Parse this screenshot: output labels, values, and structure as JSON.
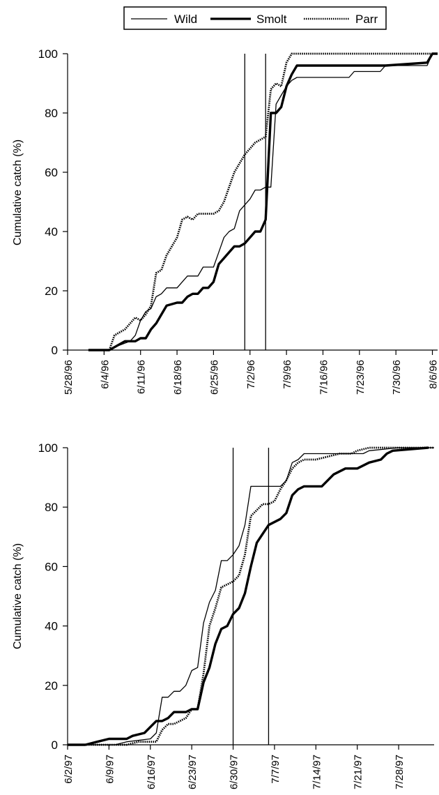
{
  "legend": {
    "placement": "top-center",
    "entries": [
      {
        "label": "Wild",
        "style": "thin"
      },
      {
        "label": "Smolt",
        "style": "thick"
      },
      {
        "label": "Parr",
        "style": "dotted"
      }
    ]
  },
  "chart_data": [
    {
      "type": "line",
      "title": "",
      "xlabel": "",
      "ylabel": "Cumulative catch (%)",
      "ylim": [
        0,
        100
      ],
      "yticks": [
        0,
        20,
        40,
        60,
        80,
        100
      ],
      "xlim": [
        "5/28/96",
        "8/7/96"
      ],
      "xticks": [
        "5/28/96",
        "6/4/96",
        "6/11/96",
        "6/18/96",
        "6/25/96",
        "7/2/96",
        "7/9/96",
        "7/16/96",
        "7/23/96",
        "7/30/96",
        "8/6/96"
      ],
      "grid": false,
      "vlines": [
        "7/1/96",
        "7/5/96"
      ],
      "series": [
        {
          "name": "Wild",
          "style": "thin",
          "points": [
            [
              "6/1/96",
              0
            ],
            [
              "6/5/96",
              0
            ],
            [
              "6/6/96",
              1
            ],
            [
              "6/9/96",
              3
            ],
            [
              "6/10/96",
              5
            ],
            [
              "6/11/96",
              10
            ],
            [
              "6/12/96",
              13
            ],
            [
              "6/13/96",
              14
            ],
            [
              "6/14/96",
              18
            ],
            [
              "6/15/96",
              19
            ],
            [
              "6/16/96",
              21
            ],
            [
              "6/18/96",
              21
            ],
            [
              "6/19/96",
              23
            ],
            [
              "6/20/96",
              25
            ],
            [
              "6/22/96",
              25
            ],
            [
              "6/23/96",
              28
            ],
            [
              "6/25/96",
              28
            ],
            [
              "6/26/96",
              33
            ],
            [
              "6/27/96",
              38
            ],
            [
              "6/28/96",
              40
            ],
            [
              "6/29/96",
              41
            ],
            [
              "6/30/96",
              47
            ],
            [
              "7/1/96",
              49
            ],
            [
              "7/2/96",
              51
            ],
            [
              "7/3/96",
              54
            ],
            [
              "7/4/96",
              54
            ],
            [
              "7/5/96",
              55
            ],
            [
              "7/6/96",
              55
            ],
            [
              "7/7/96",
              83
            ],
            [
              "7/8/96",
              86
            ],
            [
              "7/9/96",
              89
            ],
            [
              "7/10/96",
              91
            ],
            [
              "7/11/96",
              92
            ],
            [
              "7/12/96",
              92
            ],
            [
              "7/13/96",
              92
            ],
            [
              "7/21/96",
              92
            ],
            [
              "7/22/96",
              94
            ],
            [
              "7/27/96",
              94
            ],
            [
              "7/28/96",
              96
            ],
            [
              "8/5/96",
              96
            ],
            [
              "8/6/96",
              100
            ],
            [
              "8/7/96",
              100
            ]
          ]
        },
        {
          "name": "Smolt",
          "style": "thick",
          "points": [
            [
              "6/1/96",
              0
            ],
            [
              "6/5/96",
              0
            ],
            [
              "6/6/96",
              1
            ],
            [
              "6/8/96",
              3
            ],
            [
              "6/10/96",
              3
            ],
            [
              "6/11/96",
              4
            ],
            [
              "6/12/96",
              4
            ],
            [
              "6/13/96",
              7
            ],
            [
              "6/14/96",
              9
            ],
            [
              "6/15/96",
              12
            ],
            [
              "6/16/96",
              15
            ],
            [
              "6/18/96",
              16
            ],
            [
              "6/19/96",
              16
            ],
            [
              "6/20/96",
              18
            ],
            [
              "6/21/96",
              19
            ],
            [
              "6/22/96",
              19
            ],
            [
              "6/23/96",
              21
            ],
            [
              "6/24/96",
              21
            ],
            [
              "6/25/96",
              23
            ],
            [
              "6/26/96",
              29
            ],
            [
              "6/27/96",
              31
            ],
            [
              "6/28/96",
              33
            ],
            [
              "6/29/96",
              35
            ],
            [
              "6/30/96",
              35
            ],
            [
              "7/1/96",
              36
            ],
            [
              "7/2/96",
              38
            ],
            [
              "7/3/96",
              40
            ],
            [
              "7/4/96",
              40
            ],
            [
              "7/5/96",
              44
            ],
            [
              "7/6/96",
              80
            ],
            [
              "7/7/96",
              80
            ],
            [
              "7/8/96",
              82
            ],
            [
              "7/9/96",
              89
            ],
            [
              "7/10/96",
              93
            ],
            [
              "7/11/96",
              96
            ],
            [
              "7/20/96",
              96
            ],
            [
              "7/28/96",
              96
            ],
            [
              "8/5/96",
              97
            ],
            [
              "8/6/96",
              100
            ],
            [
              "8/7/96",
              100
            ]
          ]
        },
        {
          "name": "Parr",
          "style": "dotted",
          "points": [
            [
              "6/1/96",
              0
            ],
            [
              "6/5/96",
              0
            ],
            [
              "6/6/96",
              5
            ],
            [
              "6/7/96",
              6
            ],
            [
              "6/8/96",
              7
            ],
            [
              "6/9/96",
              9
            ],
            [
              "6/10/96",
              11
            ],
            [
              "6/11/96",
              10
            ],
            [
              "6/12/96",
              12
            ],
            [
              "6/13/96",
              15
            ],
            [
              "6/14/96",
              26
            ],
            [
              "6/15/96",
              27
            ],
            [
              "6/16/96",
              32
            ],
            [
              "6/17/96",
              35
            ],
            [
              "6/18/96",
              38
            ],
            [
              "6/19/96",
              44
            ],
            [
              "6/20/96",
              45
            ],
            [
              "6/21/96",
              44
            ],
            [
              "6/22/96",
              46
            ],
            [
              "6/25/96",
              46
            ],
            [
              "6/26/96",
              47
            ],
            [
              "6/27/96",
              50
            ],
            [
              "6/28/96",
              55
            ],
            [
              "6/29/96",
              60
            ],
            [
              "6/30/96",
              63
            ],
            [
              "7/1/96",
              66
            ],
            [
              "7/2/96",
              68
            ],
            [
              "7/3/96",
              70
            ],
            [
              "7/4/96",
              71
            ],
            [
              "7/5/96",
              72
            ],
            [
              "7/6/96",
              88
            ],
            [
              "7/7/96",
              90
            ],
            [
              "7/8/96",
              89
            ],
            [
              "7/9/96",
              97
            ],
            [
              "7/10/96",
              100
            ],
            [
              "8/7/96",
              100
            ]
          ]
        }
      ]
    },
    {
      "type": "line",
      "title": "",
      "xlabel": "",
      "ylabel": "Cumulative catch (%)",
      "ylim": [
        0,
        100
      ],
      "yticks": [
        0,
        20,
        40,
        60,
        80,
        100
      ],
      "xlim": [
        "6/2/97",
        "8/3/97"
      ],
      "xticks": [
        "6/2/97",
        "6/9/97",
        "6/16/97",
        "6/23/97",
        "6/30/97",
        "7/7/97",
        "7/14/97",
        "7/21/97",
        "7/28/97"
      ],
      "grid": false,
      "vlines": [
        "6/30/97",
        "7/6/97"
      ],
      "series": [
        {
          "name": "Wild",
          "style": "thin",
          "points": [
            [
              "6/2/97",
              0
            ],
            [
              "6/10/97",
              0
            ],
            [
              "6/12/97",
              1
            ],
            [
              "6/16/97",
              2
            ],
            [
              "6/17/97",
              4
            ],
            [
              "6/18/97",
              16
            ],
            [
              "6/19/97",
              16
            ],
            [
              "6/20/97",
              18
            ],
            [
              "6/21/97",
              18
            ],
            [
              "6/22/97",
              20
            ],
            [
              "6/23/97",
              25
            ],
            [
              "6/24/97",
              26
            ],
            [
              "6/25/97",
              41
            ],
            [
              "6/26/97",
              48
            ],
            [
              "6/27/97",
              52
            ],
            [
              "6/28/97",
              62
            ],
            [
              "6/29/97",
              62
            ],
            [
              "6/30/97",
              64
            ],
            [
              "7/1/97",
              67
            ],
            [
              "7/2/97",
              74
            ],
            [
              "7/3/97",
              87
            ],
            [
              "7/4/97",
              87
            ],
            [
              "7/8/97",
              87
            ],
            [
              "7/9/97",
              89
            ],
            [
              "7/10/97",
              95
            ],
            [
              "7/11/97",
              96
            ],
            [
              "7/12/97",
              98
            ],
            [
              "7/14/97",
              98
            ],
            [
              "7/22/97",
              98
            ],
            [
              "7/23/97",
              99
            ],
            [
              "7/28/97",
              100
            ],
            [
              "8/3/97",
              100
            ]
          ]
        },
        {
          "name": "Smolt",
          "style": "thick",
          "points": [
            [
              "6/2/97",
              0
            ],
            [
              "6/5/97",
              0
            ],
            [
              "6/7/97",
              1
            ],
            [
              "6/9/97",
              2
            ],
            [
              "6/12/97",
              2
            ],
            [
              "6/13/97",
              3
            ],
            [
              "6/15/97",
              4
            ],
            [
              "6/16/97",
              6
            ],
            [
              "6/17/97",
              8
            ],
            [
              "6/18/97",
              8
            ],
            [
              "6/19/97",
              9
            ],
            [
              "6/20/97",
              11
            ],
            [
              "6/22/97",
              11
            ],
            [
              "6/23/97",
              12
            ],
            [
              "6/24/97",
              12
            ],
            [
              "6/25/97",
              21
            ],
            [
              "6/26/97",
              26
            ],
            [
              "6/27/97",
              34
            ],
            [
              "6/28/97",
              39
            ],
            [
              "6/29/97",
              40
            ],
            [
              "6/30/97",
              44
            ],
            [
              "7/1/97",
              46
            ],
            [
              "7/2/97",
              51
            ],
            [
              "7/3/97",
              60
            ],
            [
              "7/4/97",
              68
            ],
            [
              "7/5/97",
              71
            ],
            [
              "7/6/97",
              74
            ],
            [
              "7/8/97",
              76
            ],
            [
              "7/9/97",
              78
            ],
            [
              "7/10/97",
              84
            ],
            [
              "7/11/97",
              86
            ],
            [
              "7/12/97",
              87
            ],
            [
              "7/15/97",
              87
            ],
            [
              "7/17/97",
              91
            ],
            [
              "7/19/97",
              93
            ],
            [
              "7/21/97",
              93
            ],
            [
              "7/23/97",
              95
            ],
            [
              "7/25/97",
              96
            ],
            [
              "7/26/97",
              98
            ],
            [
              "7/27/97",
              99
            ],
            [
              "8/2/97",
              100
            ]
          ]
        },
        {
          "name": "Parr",
          "style": "dotted",
          "points": [
            [
              "6/2/97",
              0
            ],
            [
              "6/12/97",
              0
            ],
            [
              "6/14/97",
              1
            ],
            [
              "6/17/97",
              1
            ],
            [
              "6/18/97",
              5
            ],
            [
              "6/19/97",
              7
            ],
            [
              "6/20/97",
              7
            ],
            [
              "6/21/97",
              8
            ],
            [
              "6/22/97",
              9
            ],
            [
              "6/23/97",
              12
            ],
            [
              "6/24/97",
              12
            ],
            [
              "6/25/97",
              24
            ],
            [
              "6/26/97",
              40
            ],
            [
              "6/27/97",
              46
            ],
            [
              "6/28/97",
              53
            ],
            [
              "6/29/97",
              54
            ],
            [
              "6/30/97",
              55
            ],
            [
              "7/1/97",
              57
            ],
            [
              "7/2/97",
              64
            ],
            [
              "7/3/97",
              77
            ],
            [
              "7/4/97",
              79
            ],
            [
              "7/5/97",
              81
            ],
            [
              "7/6/97",
              81
            ],
            [
              "7/7/97",
              82
            ],
            [
              "7/8/97",
              86
            ],
            [
              "7/9/97",
              89
            ],
            [
              "7/10/97",
              93
            ],
            [
              "7/11/97",
              95
            ],
            [
              "7/12/97",
              96
            ],
            [
              "7/14/97",
              96
            ],
            [
              "7/16/97",
              97
            ],
            [
              "7/18/97",
              98
            ],
            [
              "7/20/97",
              98
            ],
            [
              "7/21/97",
              99
            ],
            [
              "7/23/97",
              100
            ],
            [
              "8/3/97",
              100
            ]
          ]
        }
      ]
    }
  ]
}
